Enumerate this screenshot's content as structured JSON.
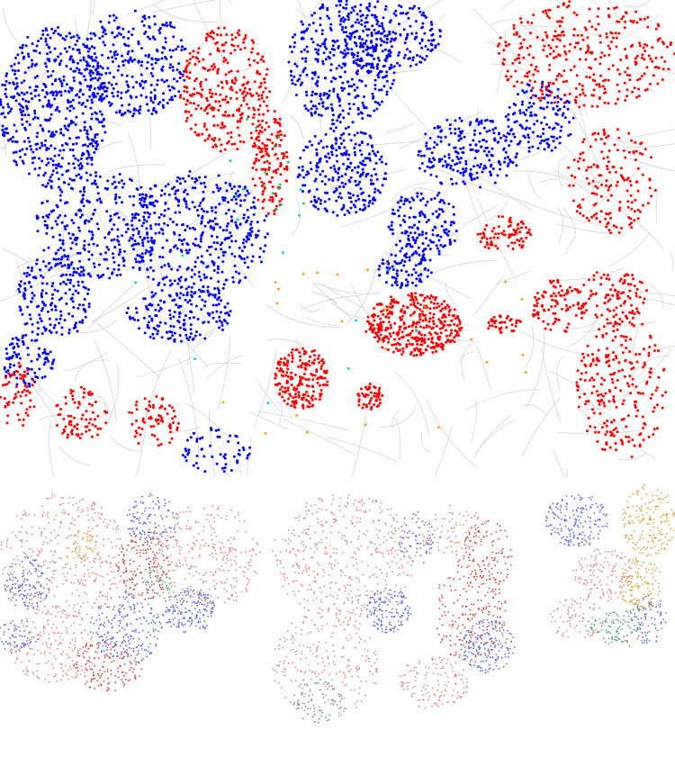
{
  "maps": {
    "main": {
      "title": "",
      "legend_colors": {
        "white": "#0000ff",
        "black": "#ff0000",
        "asian": "#00cc66",
        "hispanic": "#ff9900",
        "other": "#00cccc"
      }
    },
    "thumbnails": [
      {
        "title": ""
      },
      {
        "title": ""
      },
      {
        "title": ""
      }
    ]
  }
}
